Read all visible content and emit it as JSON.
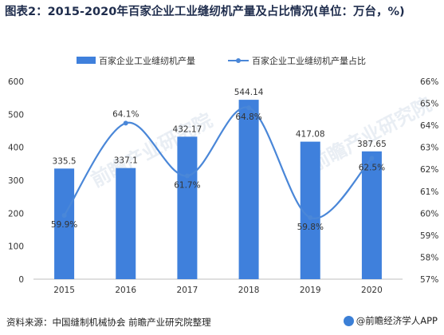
{
  "title": "图表2：2015-2020年百家企业工业缝纫机产量及占比情况(单位：万台，%)",
  "source": "资料来源：中国缝制机械协会 前瞻产业研究院整理",
  "brand": "@前瞻经济学人APP",
  "watermark": "前瞻产业研究院",
  "colors": {
    "bar": "#3f80dc",
    "line": "#4a87d8",
    "grid": "#e3e3e3",
    "text": "#333333"
  },
  "chart_data": {
    "type": "bar",
    "categories": [
      "2015",
      "2016",
      "2017",
      "2018",
      "2019",
      "2020"
    ],
    "series": [
      {
        "name": "百家企业工业缝纫机产量",
        "type": "bar",
        "axis": "left",
        "values": [
          335.5,
          337.1,
          432.17,
          544.14,
          417.08,
          387.65
        ],
        "labels": [
          "335.5",
          "337.1",
          "432.17",
          "544.14",
          "417.08",
          "387.65"
        ]
      },
      {
        "name": "百家企业工业缝纫机产量占比",
        "type": "line",
        "axis": "right",
        "smooth": true,
        "values": [
          59.9,
          64.1,
          61.7,
          64.8,
          59.8,
          62.5
        ],
        "labels": [
          "59.9%",
          "64.1%",
          "61.7%",
          "64.8%",
          "59.8%",
          "62.5%"
        ]
      }
    ],
    "y_left": {
      "ylim": [
        0,
        600
      ],
      "ticks": [
        "0",
        "100",
        "200",
        "300",
        "400",
        "500",
        "600"
      ]
    },
    "y_right": {
      "ylim": [
        57,
        66
      ],
      "ticks": [
        "57%",
        "58%",
        "59%",
        "60%",
        "61%",
        "62%",
        "63%",
        "64%",
        "65%",
        "66%"
      ]
    },
    "legend": "top",
    "grid": true
  }
}
